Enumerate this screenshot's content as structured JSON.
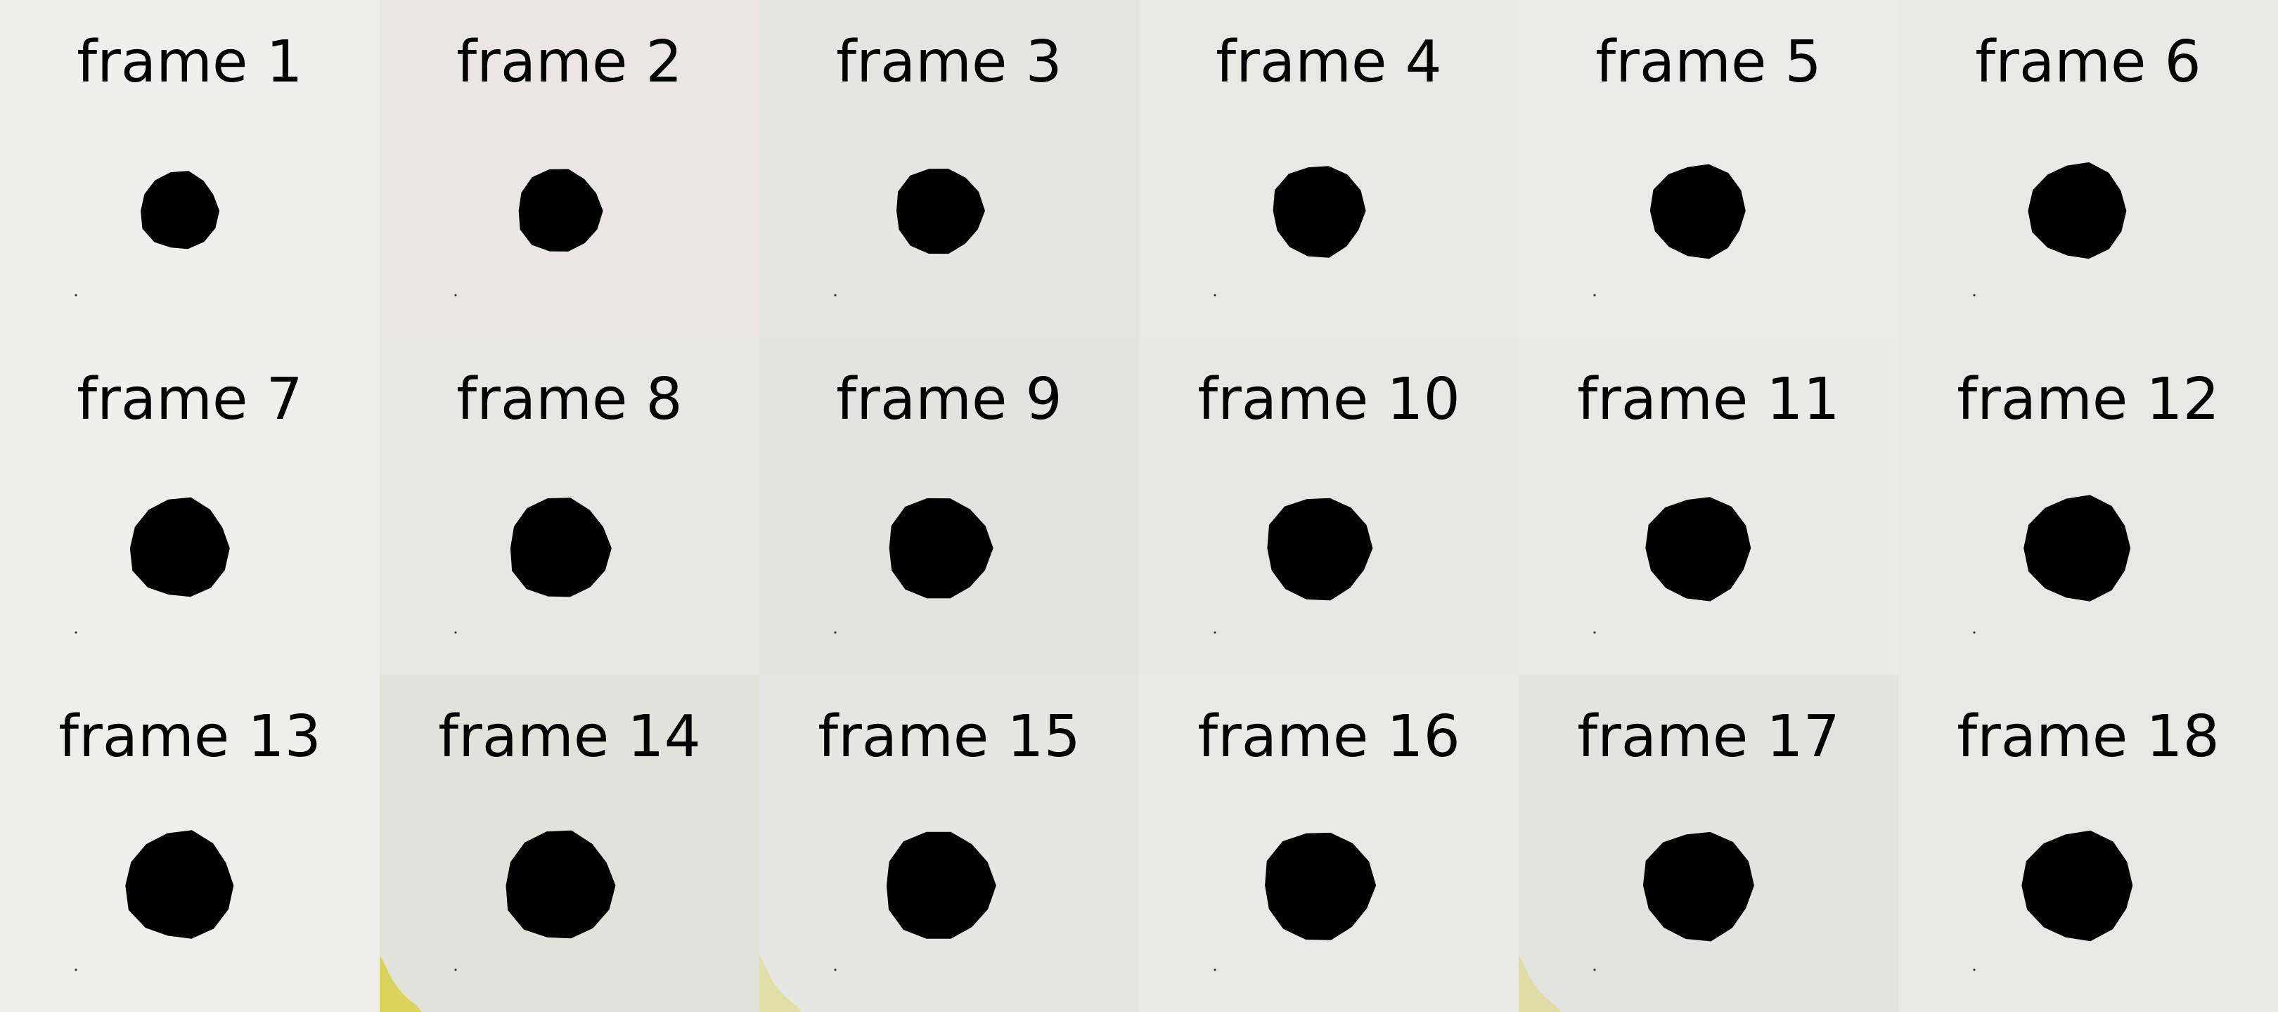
{
  "frames": [
    {
      "label": "frame 1",
      "bg": "#efefed"
    },
    {
      "label": "frame 2",
      "bg": "#e8e7e4"
    },
    {
      "label": "frame 3",
      "bg": "#e5e5e2"
    },
    {
      "label": "frame 4",
      "bg": "#e8e8e5"
    },
    {
      "label": "frame 5",
      "bg": "#eaeae8"
    },
    {
      "label": "frame 6",
      "bg": "#e9e9e6"
    },
    {
      "label": "frame 7",
      "bg": "#efefec"
    },
    {
      "label": "frame 8",
      "bg": "#e7e7e4"
    },
    {
      "label": "frame 9",
      "bg": "#e3e3df"
    },
    {
      "label": "frame 10",
      "bg": "#e7e7e4"
    },
    {
      "label": "frame 11",
      "bg": "#e9e9e6"
    },
    {
      "label": "frame 12",
      "bg": "#e8e8e5"
    },
    {
      "label": "frame 13",
      "bg": "#eeeeeb"
    },
    {
      "label": "frame 14",
      "bg": "#e2e2dd"
    },
    {
      "label": "frame 15",
      "bg": "#e6e6e2"
    },
    {
      "label": "frame 16",
      "bg": "#e9e9e6"
    },
    {
      "label": "frame 17",
      "bg": "#e3e3df"
    },
    {
      "label": "frame 18",
      "bg": "#e8e8e5"
    }
  ],
  "dot_color": "#000000",
  "stain_color": "#d8d23a"
}
